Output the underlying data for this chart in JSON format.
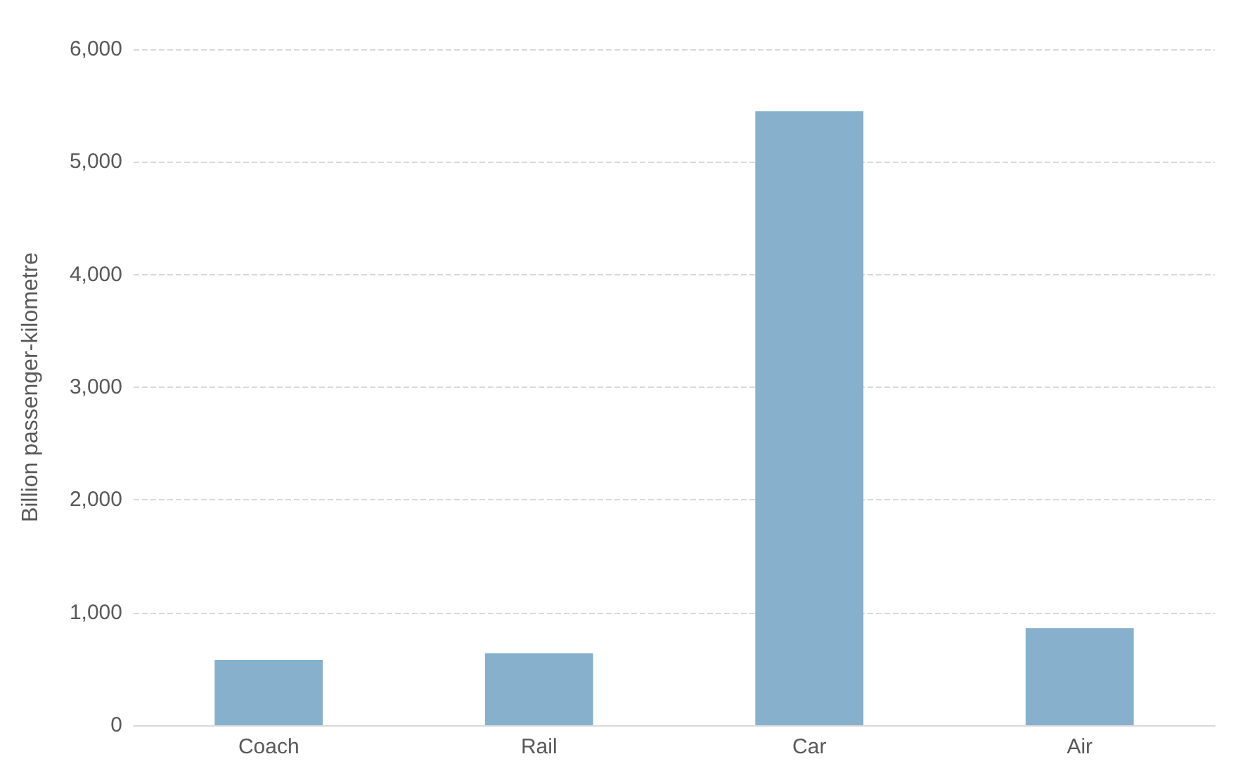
{
  "chart_data": {
    "type": "bar",
    "ylabel": "Billion passenger-kilometre",
    "categories": [
      "Coach",
      "Rail",
      "Car",
      "Air"
    ],
    "values": [
      580,
      640,
      5450,
      860
    ],
    "color": "#86b0cc",
    "ylim": [
      0,
      6000
    ],
    "yticks": [
      0,
      {
        "value": 1000,
        "label": "1,000"
      },
      {
        "value": 2000,
        "label": "2,000"
      },
      {
        "value": 3000,
        "label": "3,000"
      },
      {
        "value": 4000,
        "label": "4,000"
      },
      {
        "value": 5000,
        "label": "5,000"
      },
      {
        "value": 6000,
        "label": "6,000"
      }
    ],
    "grid": "y"
  }
}
